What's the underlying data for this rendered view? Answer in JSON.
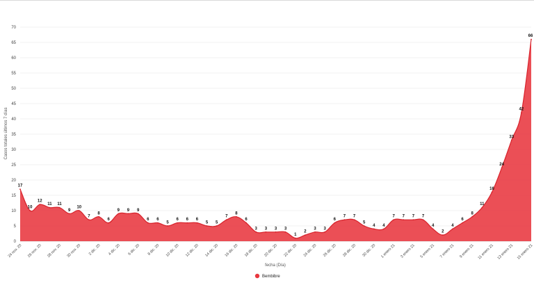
{
  "chart_data": {
    "type": "area",
    "xlabel": "fecha (Día)",
    "ylabel": "Casos totales últimos 7 días",
    "ylim": [
      0,
      70
    ],
    "yticks": [
      0,
      5,
      10,
      15,
      20,
      25,
      30,
      35,
      40,
      45,
      50,
      55,
      60,
      65,
      70
    ],
    "grid": true,
    "legend_position": "bottom-center",
    "tick_labels": [
      "24 nov. 20",
      "26 nov. 20",
      "28 nov. 20",
      "30 nov. 20",
      "2 dic. 20",
      "4 dic. 20",
      "6 dic. 20",
      "8 dic. 20",
      "10 dic. 20",
      "12 dic. 20",
      "14 dic. 20",
      "16 dic. 20",
      "18 dic. 20",
      "20 dic. 20",
      "22 dic. 20",
      "24 dic. 20",
      "26 dic. 20",
      "28 dic. 20",
      "30 dic. 20",
      "1 enero 21",
      "3 enero 21",
      "5 enero 21",
      "7 enero 21",
      "9 enero 21",
      "11 enero 21",
      "13 enero 21",
      "15 enero 21"
    ],
    "series": [
      {
        "name": "Bembibre",
        "color": "#e8373f",
        "values": [
          17,
          10,
          12,
          11,
          11,
          9,
          10,
          7,
          8,
          6,
          9,
          9,
          9,
          6,
          6,
          5,
          6,
          6,
          6,
          5,
          5,
          7,
          8,
          6,
          3,
          3,
          3,
          3,
          1,
          2,
          3,
          3,
          6,
          7,
          7,
          5,
          4,
          4,
          7,
          7,
          7,
          7,
          4,
          2,
          4,
          6,
          8,
          11,
          16,
          24,
          33,
          42,
          66
        ]
      }
    ]
  }
}
